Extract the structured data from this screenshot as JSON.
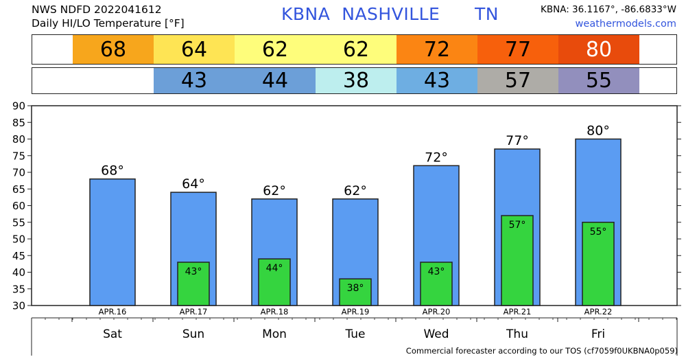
{
  "header": {
    "line1": "NWS NDFD 2022041612",
    "line2": "Daily HI/LO Temperature [°F]",
    "station_title": "KBNA  NASHVILLE      TN",
    "coords": "KBNA: 36.1167°, -86.6833°W",
    "site": "weathermodels.com"
  },
  "hi_strip": [
    {
      "text": "68",
      "color": "#f7a61c"
    },
    {
      "text": "64",
      "color": "#fee454"
    },
    {
      "text": "62",
      "color": "#fefd7b"
    },
    {
      "text": "62",
      "color": "#fefd7b"
    },
    {
      "text": "72",
      "color": "#fb8513"
    },
    {
      "text": "77",
      "color": "#f7600c"
    },
    {
      "text": "80",
      "color": "#e84b0c",
      "text_color": "#ffffff"
    }
  ],
  "lo_strip": [
    {
      "text": "",
      "color": "#ffffff"
    },
    {
      "text": "43",
      "color": "#6c9fd8"
    },
    {
      "text": "44",
      "color": "#6c9fd8"
    },
    {
      "text": "38",
      "color": "#bdeeee"
    },
    {
      "text": "43",
      "color": "#6eaee2"
    },
    {
      "text": "57",
      "color": "#aeaca7"
    },
    {
      "text": "55",
      "color": "#928fbd"
    }
  ],
  "chart_data": {
    "type": "bar",
    "ylim": [
      30,
      90
    ],
    "yticks": [
      30,
      35,
      40,
      45,
      50,
      55,
      60,
      65,
      70,
      75,
      80,
      85,
      90
    ],
    "categories": [
      "Sat",
      "Sun",
      "Mon",
      "Tue",
      "Wed",
      "Thu",
      "Fri"
    ],
    "dates": [
      "APR.16",
      "APR.17",
      "APR.18",
      "APR.19",
      "APR.20",
      "APR.21",
      "APR.22"
    ],
    "series": [
      {
        "values": [
          68,
          64,
          62,
          62,
          72,
          77,
          80
        ],
        "labels": [
          "68°",
          "64°",
          "62°",
          "62°",
          "72°",
          "77°",
          "80°"
        ],
        "color": "#5b9cf2"
      },
      {
        "values": [
          null,
          43,
          44,
          38,
          43,
          57,
          55
        ],
        "labels": [
          "",
          "43°",
          "44°",
          "38°",
          "43°",
          "57°",
          "55°"
        ],
        "color": "#35d43f"
      }
    ],
    "grid": false
  },
  "footer": "Commercial forecaster according to our TOS (cf7059f0UKBNA0p059)"
}
